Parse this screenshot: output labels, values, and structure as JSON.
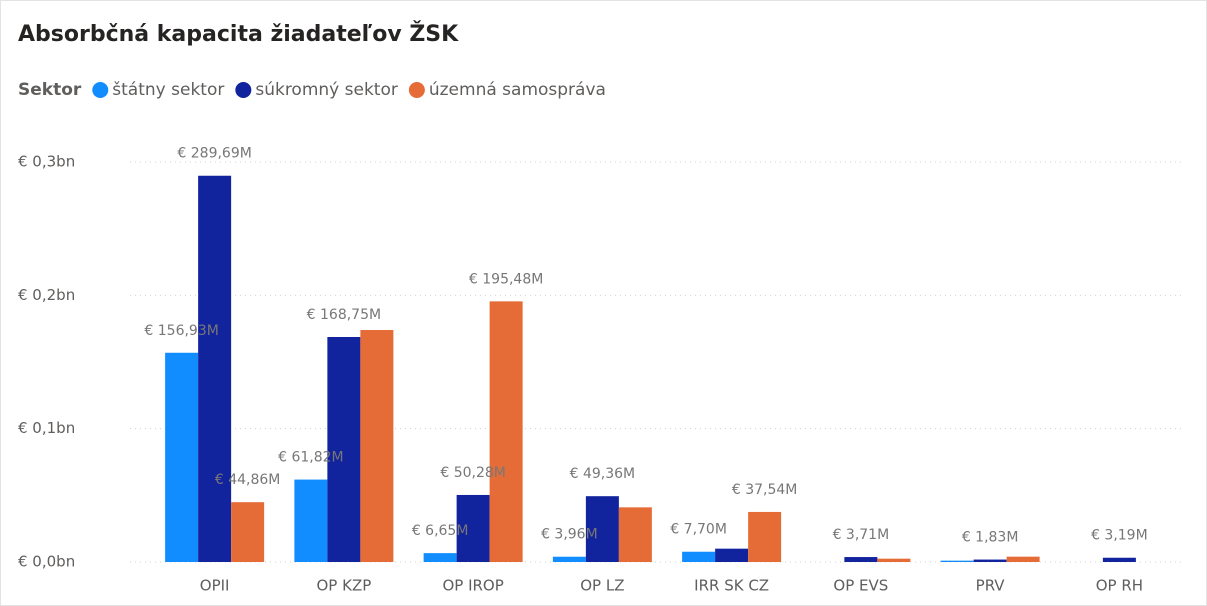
{
  "chart_data": {
    "type": "bar",
    "title": "Absorbčná kapacita žiadateľov ŽSK",
    "legend_title": "Sektor",
    "legend_position": "top-left",
    "grid": true,
    "categories": [
      "OPII",
      "OP KZP",
      "OP IROP",
      "OP LZ",
      "IRR SK CZ",
      "OP EVS",
      "PRV",
      "OP RH"
    ],
    "series": [
      {
        "name": "štátny sektor",
        "color": "#118DFF",
        "values": [
          156930000,
          61820000,
          6650000,
          3960000,
          7700000,
          null,
          1000000,
          null
        ],
        "value_labels": [
          "€ 156,93M",
          "€ 61,82M",
          "€ 6,65M",
          "€ 3,96M",
          "€ 7,70M",
          null,
          null,
          null
        ]
      },
      {
        "name": "súkromný sektor",
        "color": "#12239E",
        "values": [
          289690000,
          168750000,
          50280000,
          49360000,
          10000000,
          3710000,
          1830000,
          3190000
        ],
        "value_labels": [
          "€ 289,69M",
          "€ 168,75M",
          "€ 50,28M",
          "€ 49,36M",
          null,
          "€ 3,71M",
          "€ 1,83M",
          "€ 3,19M"
        ]
      },
      {
        "name": "územná samospráva",
        "color": "#E66C37",
        "values": [
          44860000,
          174000000,
          195480000,
          41000000,
          37540000,
          2500000,
          4000000,
          null
        ],
        "value_labels": [
          "€ 44,86M",
          null,
          "€ 195,48M",
          null,
          "€ 37,54M",
          null,
          null,
          null
        ]
      }
    ],
    "ylim": [
      0,
      300000000
    ],
    "yticks": [
      {
        "value": 0,
        "label": "€ 0,0bn"
      },
      {
        "value": 100000000,
        "label": "€ 0,1bn"
      },
      {
        "value": 200000000,
        "label": "€ 0,2bn"
      },
      {
        "value": 300000000,
        "label": "€ 0,3bn"
      }
    ]
  }
}
